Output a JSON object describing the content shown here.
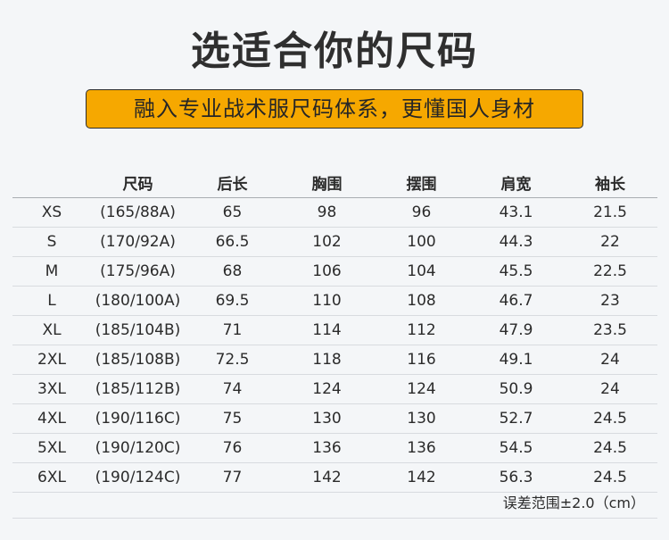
{
  "title": "选适合你的尺码",
  "subtitle": "融入专业战术服尺码体系，更懂国人身材",
  "table": {
    "headers": [
      "",
      "尺码",
      "后长",
      "胸围",
      "摆围",
      "肩宽",
      "袖长"
    ],
    "rows": [
      [
        "XS",
        "(165/88A)",
        "65",
        "98",
        "96",
        "43.1",
        "21.5"
      ],
      [
        "S",
        "(170/92A)",
        "66.5",
        "102",
        "100",
        "44.3",
        "22"
      ],
      [
        "M",
        "(175/96A)",
        "68",
        "106",
        "104",
        "45.5",
        "22.5"
      ],
      [
        "L",
        "(180/100A)",
        "69.5",
        "110",
        "108",
        "46.7",
        "23"
      ],
      [
        "XL",
        "(185/104B)",
        "71",
        "114",
        "112",
        "47.9",
        "23.5"
      ],
      [
        "2XL",
        "(185/108B)",
        "72.5",
        "118",
        "116",
        "49.1",
        "24"
      ],
      [
        "3XL",
        "(185/112B)",
        "74",
        "124",
        "124",
        "50.9",
        "24"
      ],
      [
        "4XL",
        "(190/116C)",
        "75",
        "130",
        "130",
        "52.7",
        "24.5"
      ],
      [
        "5XL",
        "(190/120C)",
        "76",
        "136",
        "136",
        "54.5",
        "24.5"
      ],
      [
        "6XL",
        "(190/124C)",
        "77",
        "142",
        "142",
        "56.3",
        "24.5"
      ]
    ]
  },
  "footnote": "误差范围±2.0（cm）",
  "colors": {
    "banner": "#f6a800",
    "background": "#f4f6f8",
    "text": "#2b2b2b"
  }
}
